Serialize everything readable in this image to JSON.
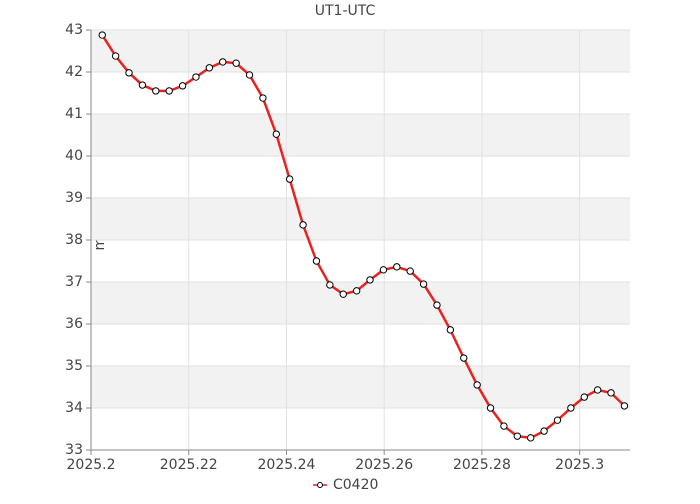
{
  "chart_data": {
    "type": "line",
    "title": "UT1-UTC",
    "y_label": "ms",
    "x": [
      2025.2023,
      2025.20504,
      2025.20778,
      2025.21052,
      2025.21326,
      2025.216,
      2025.21874,
      2025.22148,
      2025.22422,
      2025.22696,
      2025.2297,
      2025.23244,
      2025.23518,
      2025.23792,
      2025.24066,
      2025.2434,
      2025.24614,
      2025.24888,
      2025.25162,
      2025.25436,
      2025.2571,
      2025.25984,
      2025.26258,
      2025.26532,
      2025.26806,
      2025.2708,
      2025.27354,
      2025.27628,
      2025.27902,
      2025.28176,
      2025.2845,
      2025.28724,
      2025.28998,
      2025.29272,
      2025.29546,
      2025.2982,
      2025.30094,
      2025.30368,
      2025.30642,
      2025.30916
    ],
    "series": [
      {
        "name": "C0420",
        "color": "#e8221e",
        "values": [
          42.88,
          42.38,
          41.98,
          41.69,
          41.55,
          41.55,
          41.67,
          41.88,
          42.1,
          42.24,
          42.21,
          41.93,
          41.38,
          40.52,
          39.45,
          38.36,
          37.5,
          36.93,
          36.71,
          36.79,
          37.05,
          37.29,
          37.36,
          37.26,
          36.95,
          36.45,
          35.86,
          35.19,
          34.55,
          34.0,
          33.57,
          33.33,
          33.29,
          33.45,
          33.71,
          34.0,
          34.26,
          34.43,
          34.36,
          34.05
        ]
      }
    ],
    "xlim": [
      2025.2,
      2025.3103
    ],
    "xticks": [
      2025.2,
      2025.22,
      2025.24,
      2025.26,
      2025.28,
      2025.3
    ],
    "ylim": [
      33,
      43
    ],
    "yticks": [
      33,
      34,
      35,
      36,
      37,
      38,
      39,
      40,
      41,
      42,
      43
    ],
    "grid": true,
    "legend": "bottom"
  }
}
